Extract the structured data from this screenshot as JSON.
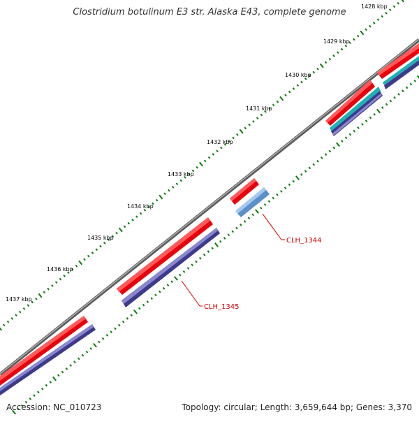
{
  "title": "Clostridium botulinum E3 str. Alaska E43, complete genome",
  "accession": "Accession: NC_010723",
  "summary": "Topology: circular; Length: 3,659,644 bp; Genes: 3,370",
  "ticks": [
    "1428 kbp",
    "1429 kbp",
    "1430 kbp",
    "1431 kbp",
    "1432 kbp",
    "1433 kbp",
    "1434 kbp",
    "1435 kbp",
    "1436 kbp",
    "1437 kbp"
  ],
  "gene_labels": {
    "clh1344": "CLH_1344",
    "clh1345": "CLH_1345"
  },
  "colors": {
    "backbone": "#808080",
    "cds": "#e8000c",
    "gene_dark": "#3d3a8a",
    "gene_light": "#5b8fc9",
    "gene_cyan": "#1fb2b2",
    "ticks": "#0a7a0a",
    "label": "#d00000"
  }
}
